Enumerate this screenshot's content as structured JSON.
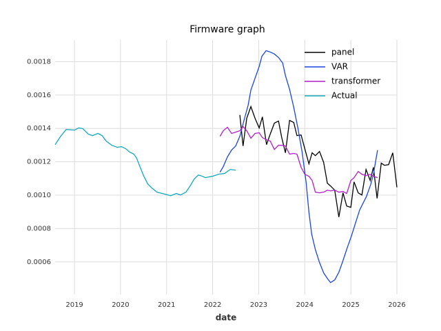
{
  "chart_data": {
    "type": "line",
    "title": "Firmware graph",
    "x_label": "date",
    "xlim": [
      2018.58,
      2026
    ],
    "xticks": [
      2019,
      2020,
      2021,
      2022,
      2023,
      2024,
      2025,
      2026
    ],
    "ylim": [
      0.000405,
      0.00193
    ],
    "yticks": [
      0.0006,
      0.0008,
      {
        "value": 0.001,
        "label": "0.0010"
      },
      0.0012,
      0.0014,
      0.0016,
      0.0018
    ],
    "grid": true,
    "legend": "upper right",
    "series": [
      {
        "name": "panel",
        "color": "#000000",
        "x": [
          2022.59,
          2022.66,
          2022.74,
          2022.83,
          2022.92,
          2023.01,
          2023.08,
          2023.17,
          2023.25,
          2023.34,
          2023.43,
          2023.5,
          2023.58,
          2023.67,
          2023.76,
          2023.83,
          2023.92,
          2024.0,
          2024.09,
          2024.16,
          2024.23,
          2024.32,
          2024.41,
          2024.49,
          2024.56,
          2024.65,
          2024.74,
          2024.83,
          2024.91,
          2025.0,
          2025.07,
          2025.16,
          2025.24,
          2025.33,
          2025.42,
          2025.49,
          2025.57,
          2025.66,
          2025.73,
          2025.82,
          2025.91,
          2026.0
        ],
        "values": [
          0.001481,
          0.001295,
          0.001461,
          0.001531,
          0.001461,
          0.001403,
          0.001469,
          0.001303,
          0.001366,
          0.001432,
          0.001444,
          0.001345,
          0.001254,
          0.001448,
          0.001436,
          0.001357,
          0.001361,
          0.001279,
          0.001188,
          0.001254,
          0.001237,
          0.001262,
          0.001196,
          0.001072,
          0.001055,
          0.00103,
          0.000869,
          0.001014,
          0.000935,
          0.000927,
          0.00108,
          0.001014,
          0.001001,
          0.001154,
          0.001088,
          0.001167,
          0.000981,
          0.001192,
          0.001179,
          0.001183,
          0.001254,
          0.001047
        ]
      },
      {
        "name": "VAR",
        "color": "#1a44e0",
        "x": [
          2022.16,
          2022.23,
          2022.32,
          2022.41,
          2022.5,
          2022.59,
          2022.68,
          2022.77,
          2022.83,
          2022.92,
          2023.01,
          2023.07,
          2023.16,
          2023.25,
          2023.34,
          2023.43,
          2023.52,
          2023.58,
          2023.67,
          2023.76,
          2023.85,
          2023.94,
          2024.03,
          2024.09,
          2024.15,
          2024.23,
          2024.32,
          2024.41,
          2024.5,
          2024.56,
          2024.65,
          2024.74,
          2024.83,
          2024.92,
          2025.01,
          2025.1,
          2025.19,
          2025.28,
          2025.34,
          2025.43,
          2025.49,
          2025.58
        ],
        "values": [
          0.001138,
          0.001171,
          0.001229,
          0.00127,
          0.001295,
          0.001353,
          0.001448,
          0.001539,
          0.00163,
          0.001701,
          0.001771,
          0.001833,
          0.001866,
          0.001858,
          0.001846,
          0.001825,
          0.001792,
          0.001717,
          0.001634,
          0.001527,
          0.001403,
          0.001262,
          0.001076,
          0.000898,
          0.000766,
          0.000674,
          0.000596,
          0.000534,
          0.000497,
          0.000476,
          0.000492,
          0.000538,
          0.000608,
          0.000683,
          0.000753,
          0.000832,
          0.00091,
          0.00096,
          0.000993,
          0.001063,
          0.001125,
          0.00127
        ]
      },
      {
        "name": "transformer",
        "color": "#b01cc8",
        "x": [
          2022.16,
          2022.23,
          2022.32,
          2022.41,
          2022.5,
          2022.59,
          2022.66,
          2022.74,
          2022.83,
          2022.92,
          2023.01,
          2023.08,
          2023.17,
          2023.25,
          2023.34,
          2023.43,
          2023.5,
          2023.58,
          2023.67,
          2023.76,
          2023.83,
          2023.92,
          2024.0,
          2024.09,
          2024.16,
          2024.23,
          2024.32,
          2024.41,
          2024.49,
          2024.56,
          2024.65,
          2024.74,
          2024.83,
          2024.91,
          2025.0,
          2025.07,
          2025.16,
          2025.24,
          2025.33,
          2025.42,
          2025.49,
          2025.58
        ],
        "values": [
          0.001353,
          0.001386,
          0.001407,
          0.00137,
          0.001378,
          0.001386,
          0.001411,
          0.001386,
          0.001341,
          0.00137,
          0.001374,
          0.001345,
          0.001332,
          0.001324,
          0.001274,
          0.001299,
          0.001299,
          0.001295,
          0.001246,
          0.00125,
          0.001246,
          0.001167,
          0.001125,
          0.001113,
          0.001088,
          0.001018,
          0.001014,
          0.001018,
          0.00103,
          0.001026,
          0.00103,
          0.001018,
          0.001022,
          0.00101,
          0.001088,
          0.001105,
          0.001142,
          0.001125,
          0.001117,
          0.001125,
          0.001113,
          0.001105
        ]
      },
      {
        "name": "Actual",
        "color": "#14a8bc",
        "x": [
          2018.58,
          2018.7,
          2018.82,
          2019.0,
          2019.09,
          2019.18,
          2019.3,
          2019.39,
          2019.51,
          2019.6,
          2019.69,
          2019.81,
          2019.93,
          2020.02,
          2020.11,
          2020.2,
          2020.29,
          2020.35,
          2020.41,
          2020.5,
          2020.59,
          2020.68,
          2020.79,
          2020.91,
          2021.09,
          2021.21,
          2021.3,
          2021.42,
          2021.51,
          2021.6,
          2021.69,
          2021.78,
          2021.84,
          2021.99,
          2022.14,
          2022.26,
          2022.38,
          2022.5
        ],
        "values": [
          0.001303,
          0.001353,
          0.001394,
          0.00139,
          0.001403,
          0.001399,
          0.001366,
          0.001357,
          0.00137,
          0.001357,
          0.001324,
          0.001299,
          0.001287,
          0.001291,
          0.001279,
          0.001258,
          0.001246,
          0.001221,
          0.001179,
          0.001117,
          0.001068,
          0.001043,
          0.001018,
          0.00101,
          0.000997,
          0.00101,
          0.001001,
          0.001018,
          0.001055,
          0.001097,
          0.001121,
          0.001113,
          0.001105,
          0.001113,
          0.001126,
          0.00113,
          0.001154,
          0.00115
        ]
      }
    ]
  }
}
